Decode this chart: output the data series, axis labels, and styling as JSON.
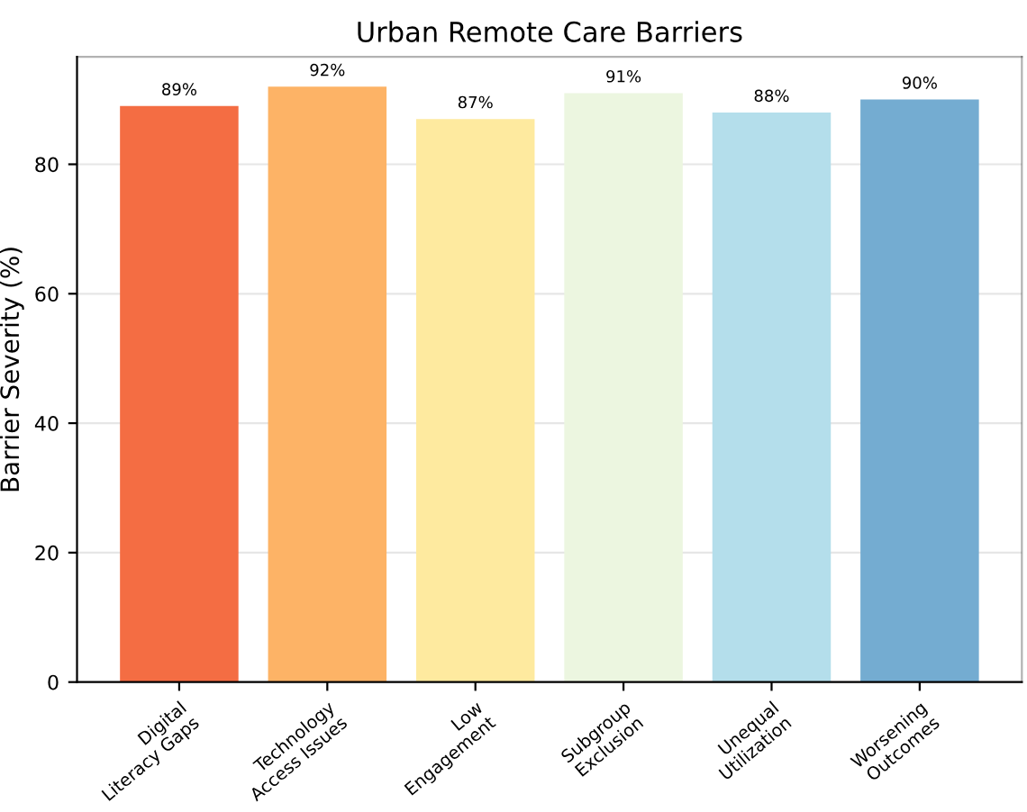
{
  "chart_data": {
    "type": "bar",
    "title": "Urban Remote Care Barriers",
    "ylabel": "Barrier Severity (%)",
    "categories": [
      "Digital\nLiteracy Gaps",
      "Technology\nAccess Issues",
      "Low\nEngagement",
      "Subgroup\nExclusion",
      "Unequal\nUtilization",
      "Worsening\nOutcomes"
    ],
    "values": [
      89,
      92,
      87,
      91,
      88,
      90
    ],
    "value_labels": [
      "89%",
      "92%",
      "87%",
      "91%",
      "88%",
      "90%"
    ],
    "colors": [
      "#f46d43",
      "#fdb366",
      "#feea9f",
      "#ecf6e0",
      "#b4deeb",
      "#74acd1"
    ],
    "ylim": [
      0,
      96.6
    ],
    "yticks": [
      0,
      20,
      40,
      60,
      80
    ],
    "grid": "y"
  }
}
